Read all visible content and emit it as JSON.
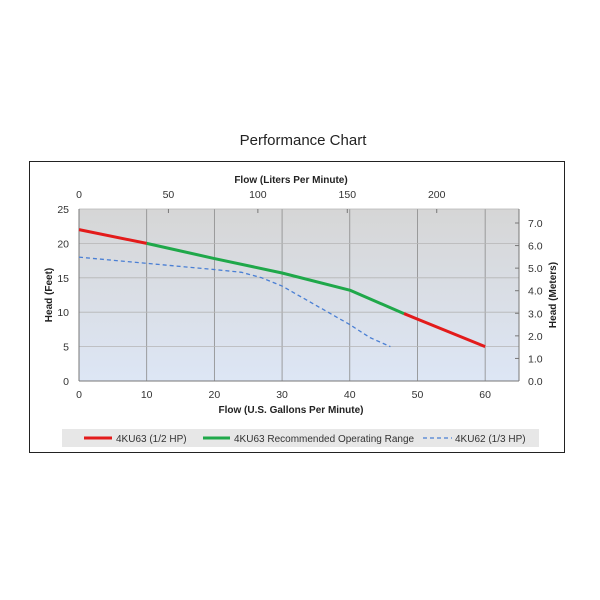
{
  "chart_data": {
    "type": "line",
    "title": "Performance Chart",
    "xlabel": "Flow (U.S. Gallons Per Minute)",
    "x2label": "Flow (Liters Per Minute)",
    "ylabel": "Head (Feet)",
    "y2label": "Head (Meters)",
    "xlim": [
      0,
      65
    ],
    "ylim": [
      0,
      25
    ],
    "x2lim": [
      0,
      246
    ],
    "y2lim": [
      0,
      7.62
    ],
    "xticks": [
      0,
      10,
      20,
      30,
      40,
      50,
      60
    ],
    "yticks": [
      0,
      5,
      10,
      15,
      20,
      25
    ],
    "x2ticks": [
      0,
      50,
      100,
      150,
      200
    ],
    "y2ticks": [
      "0.0",
      "1.0",
      "2.0",
      "3.0",
      "4.0",
      "5.0",
      "6.0",
      "7.0"
    ],
    "grid": true,
    "legend_position": "bottom",
    "series": [
      {
        "name": "4KU63 (1/2 HP)",
        "color": "#e31b1b",
        "style": "solid",
        "segments": [
          [
            [
              0,
              22
            ],
            [
              10,
              20
            ]
          ],
          [
            [
              48,
              9.8
            ],
            [
              50,
              9
            ],
            [
              60,
              5
            ]
          ]
        ]
      },
      {
        "name": "4KU63 Recommended Operating Range",
        "color": "#1fa84a",
        "style": "solid",
        "segments": [
          [
            [
              10,
              20
            ],
            [
              20,
              17.8
            ],
            [
              30,
              15.7
            ],
            [
              40,
              13.2
            ],
            [
              44,
              11.5
            ],
            [
              48,
              9.8
            ]
          ]
        ]
      },
      {
        "name": "4KU62 (1/3 HP)",
        "color": "#4a7fd4",
        "style": "dashed",
        "segments": [
          [
            [
              0,
              18
            ],
            [
              10,
              17.1
            ],
            [
              20,
              16.2
            ],
            [
              24,
              15.8
            ],
            [
              27,
              15
            ],
            [
              30,
              13.8
            ],
            [
              35,
              11
            ],
            [
              40,
              8.2
            ],
            [
              43,
              6.3
            ],
            [
              46,
              5
            ]
          ]
        ]
      }
    ]
  }
}
